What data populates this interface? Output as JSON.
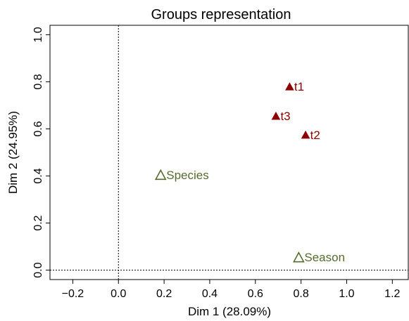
{
  "chart_data": {
    "type": "scatter",
    "title": "Groups representation",
    "xlabel": "Dim 1 (28.09%)",
    "ylabel": "Dim 2 (24.95%)",
    "xlim": [
      -0.3,
      1.27
    ],
    "ylim": [
      -0.04,
      1.04
    ],
    "x_ticks": [
      -0.2,
      0.0,
      0.2,
      0.4,
      0.6,
      0.8,
      1.0,
      1.2
    ],
    "x_tick_labels": [
      "−0.2",
      "0.0",
      "0.2",
      "0.4",
      "0.6",
      "0.8",
      "1.0",
      "1.2"
    ],
    "y_ticks": [
      0.0,
      0.2,
      0.4,
      0.6,
      0.8,
      1.0
    ],
    "y_tick_labels": [
      "0.0",
      "0.2",
      "0.4",
      "0.6",
      "0.8",
      "1.0"
    ],
    "reference_lines": {
      "x": 0,
      "y": 0,
      "style": "dotted"
    },
    "series": [
      {
        "marker": "filled-triangle",
        "color": "#8B0000",
        "points": [
          {
            "label": "t1",
            "x": 0.75,
            "y": 0.78
          },
          {
            "label": "t3",
            "x": 0.69,
            "y": 0.655
          },
          {
            "label": "t2",
            "x": 0.82,
            "y": 0.575
          }
        ]
      },
      {
        "marker": "open-triangle",
        "color": "#556B2F",
        "points": [
          {
            "label": "Species",
            "x": 0.185,
            "y": 0.405
          },
          {
            "label": "Season",
            "x": 0.79,
            "y": 0.055
          }
        ]
      }
    ]
  }
}
